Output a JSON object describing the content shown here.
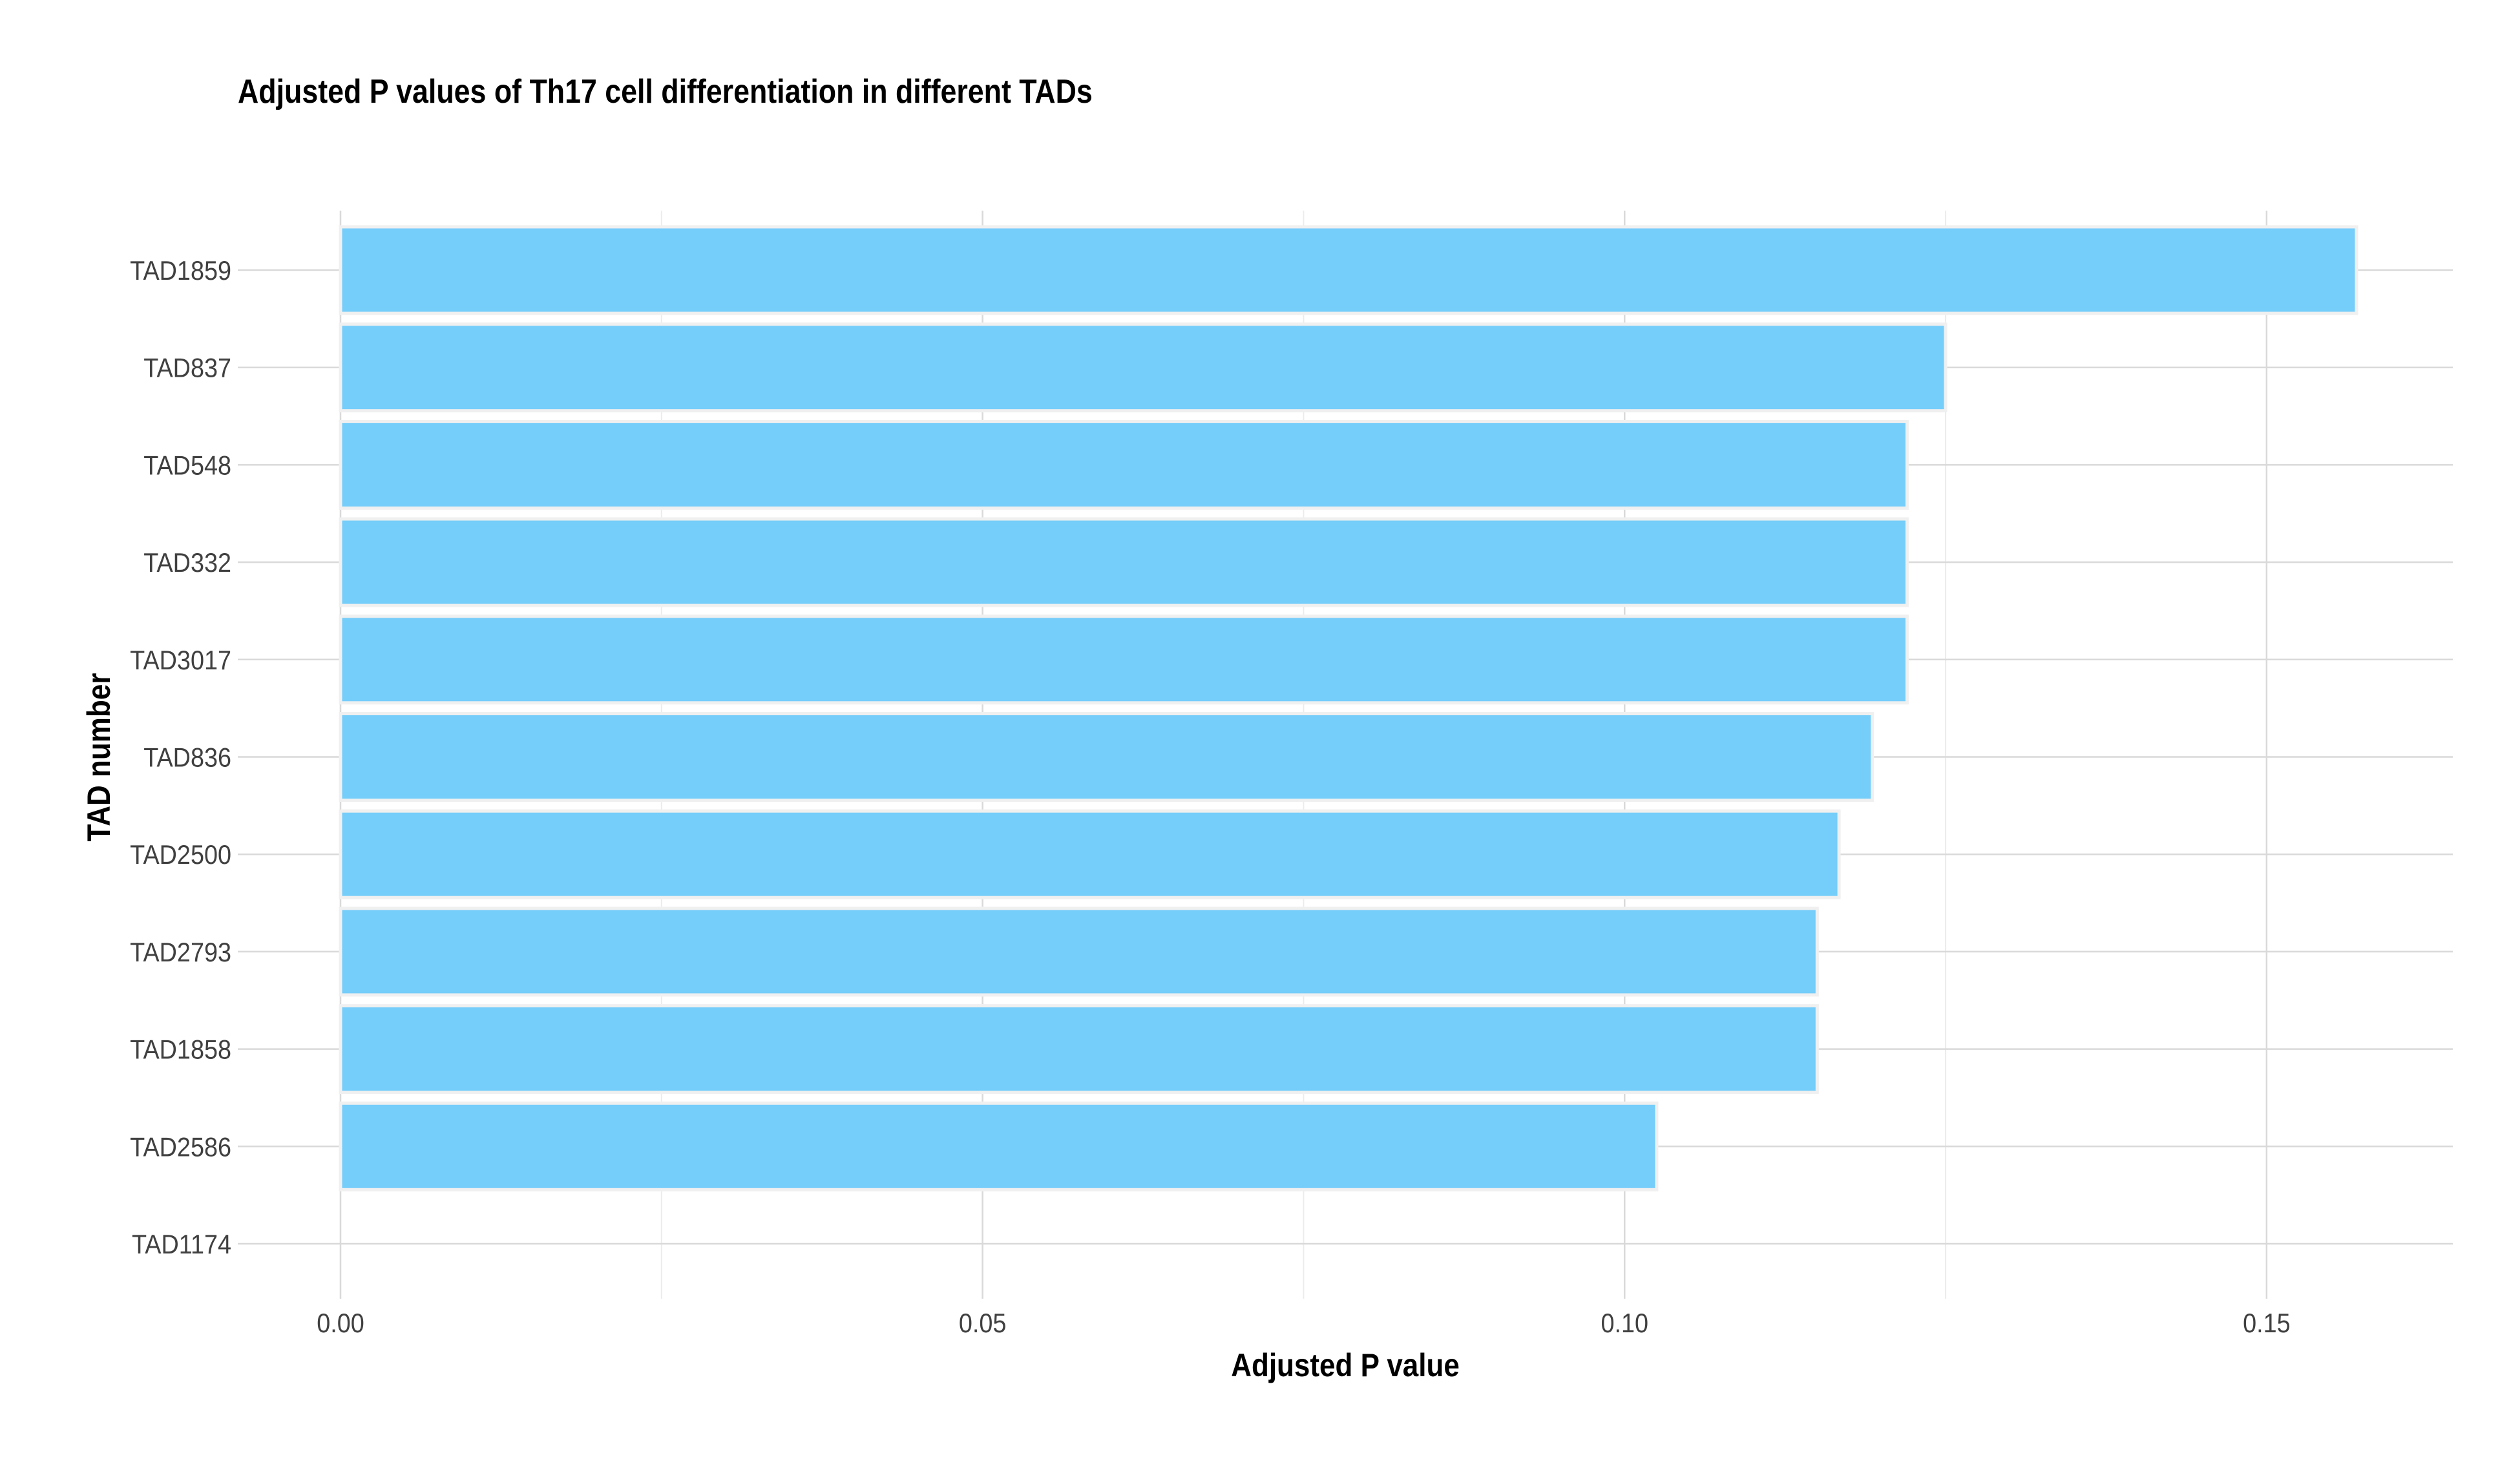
{
  "chart_data": {
    "type": "bar",
    "orientation": "horizontal",
    "title": "Adjusted P values of Th17 cell differentiation in different TADs",
    "xlabel": "Adjusted P value",
    "ylabel": "TAD number",
    "categories": [
      "TAD1859",
      "TAD837",
      "TAD548",
      "TAD332",
      "TAD3017",
      "TAD836",
      "TAD2500",
      "TAD2793",
      "TAD1858",
      "TAD2586",
      "TAD1174"
    ],
    "values": [
      0.157,
      0.125,
      0.122,
      0.122,
      0.122,
      0.1193,
      0.1167,
      0.115,
      0.115,
      0.1025,
      null
    ],
    "xlim": [
      -0.008,
      0.1645
    ],
    "x_ticks": [
      "0.00",
      "0.05",
      "0.10",
      "0.15"
    ],
    "x_tick_values": [
      0,
      0.05,
      0.1,
      0.15
    ],
    "grid": true,
    "legend": "none",
    "colors": {
      "bar_fill": "#75cdfa",
      "bar_stroke": "#f0f0f0",
      "grid_major": "#d9d9d9",
      "grid_minor": "#ececec",
      "text": "#404040"
    }
  }
}
